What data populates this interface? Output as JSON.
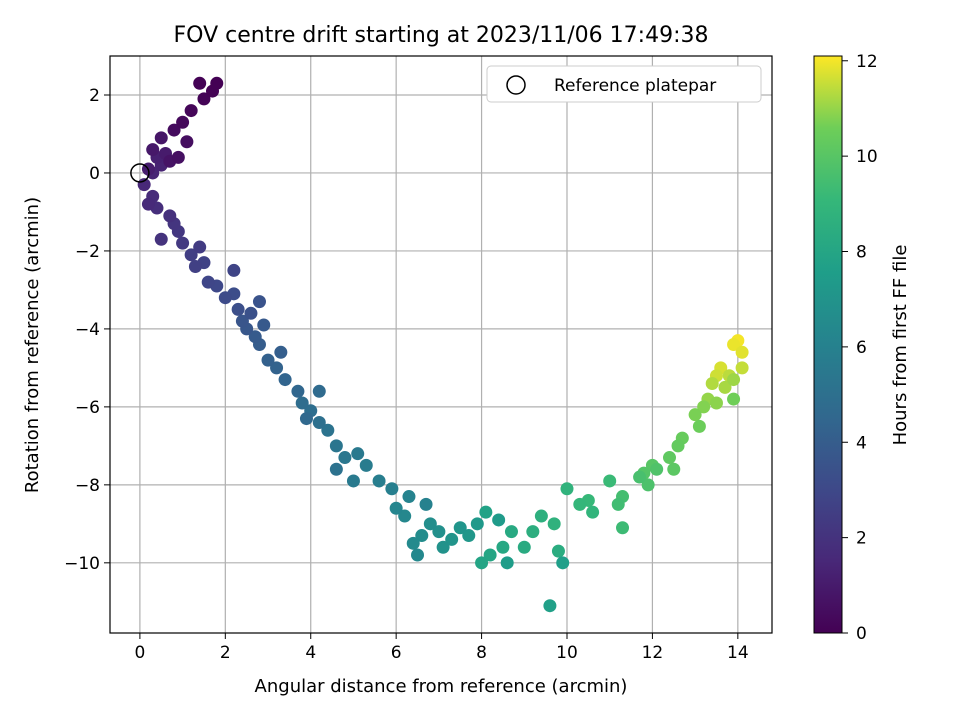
{
  "chart_data": {
    "type": "scatter",
    "title": "FOV centre drift starting at 2023/11/06 17:49:38",
    "xlabel": "Angular distance from reference (arcmin)",
    "ylabel": "Rotation from reference (arcmin)",
    "xlim": [
      -0.7,
      14.8
    ],
    "ylim": [
      -11.8,
      3.0
    ],
    "xticks": [
      0,
      2,
      4,
      6,
      8,
      10,
      12,
      14
    ],
    "yticks": [
      2,
      0,
      -2,
      -4,
      -6,
      -8,
      -10
    ],
    "xtick_labels": [
      "0",
      "2",
      "4",
      "6",
      "8",
      "10",
      "12",
      "14"
    ],
    "ytick_labels": [
      "2",
      "0",
      "−2",
      "−4",
      "−6",
      "−8",
      "−10"
    ],
    "grid": true,
    "colormap": "viridis",
    "colorbar": {
      "label": "Hours from first FF file",
      "range": [
        0,
        12.1
      ],
      "ticks": [
        0,
        2,
        4,
        6,
        8,
        10,
        12
      ],
      "tick_labels": [
        "0",
        "2",
        "4",
        "6",
        "8",
        "10",
        "12"
      ]
    },
    "legend": {
      "placement": "top-right",
      "entries": [
        {
          "label": "Reference platepar",
          "marker": "open-circle"
        }
      ]
    },
    "reference_point": {
      "x": 0,
      "y": 0
    },
    "series": [
      {
        "color_by": "hours",
        "points": [
          [
            14.0,
            -4.3,
            12.0
          ],
          [
            13.9,
            -4.4,
            11.9
          ],
          [
            14.1,
            -4.6,
            11.8
          ],
          [
            13.6,
            -5.0,
            11.7
          ],
          [
            13.5,
            -5.2,
            11.6
          ],
          [
            14.1,
            -5.0,
            11.5
          ],
          [
            13.8,
            -5.2,
            11.4
          ],
          [
            13.4,
            -5.4,
            11.3
          ],
          [
            13.7,
            -5.5,
            11.2
          ],
          [
            13.9,
            -5.3,
            11.1
          ],
          [
            13.3,
            -5.8,
            11.0
          ],
          [
            13.5,
            -5.9,
            10.9
          ],
          [
            13.2,
            -6.0,
            10.8
          ],
          [
            13.0,
            -6.2,
            10.7
          ],
          [
            13.9,
            -5.8,
            10.6
          ],
          [
            13.1,
            -6.5,
            10.5
          ],
          [
            12.7,
            -6.8,
            10.4
          ],
          [
            12.6,
            -7.0,
            10.3
          ],
          [
            12.4,
            -7.3,
            10.2
          ],
          [
            12.5,
            -7.6,
            10.1
          ],
          [
            12.0,
            -7.5,
            10.0
          ],
          [
            11.8,
            -7.7,
            9.9
          ],
          [
            12.1,
            -7.6,
            9.8
          ],
          [
            11.9,
            -8.0,
            9.7
          ],
          [
            11.7,
            -7.8,
            9.6
          ],
          [
            11.3,
            -8.3,
            9.5
          ],
          [
            11.2,
            -8.5,
            9.4
          ],
          [
            11.3,
            -9.1,
            9.3
          ],
          [
            11.0,
            -7.9,
            9.2
          ],
          [
            10.5,
            -8.4,
            9.1
          ],
          [
            10.3,
            -8.5,
            9.0
          ],
          [
            10.6,
            -8.7,
            8.9
          ],
          [
            10.0,
            -8.1,
            8.8
          ],
          [
            9.7,
            -9.0,
            8.7
          ],
          [
            9.4,
            -8.8,
            8.6
          ],
          [
            9.2,
            -9.2,
            8.5
          ],
          [
            9.8,
            -9.7,
            8.4
          ],
          [
            9.0,
            -9.6,
            8.3
          ],
          [
            8.7,
            -9.2,
            8.2
          ],
          [
            8.5,
            -9.6,
            8.1
          ],
          [
            8.2,
            -9.8,
            8.0
          ],
          [
            8.0,
            -10.0,
            7.9
          ],
          [
            8.1,
            -8.7,
            7.8
          ],
          [
            9.6,
            -11.1,
            7.7
          ],
          [
            9.9,
            -10.0,
            7.6
          ],
          [
            8.6,
            -10.0,
            7.5
          ],
          [
            8.4,
            -8.9,
            7.4
          ],
          [
            7.9,
            -9.0,
            7.3
          ],
          [
            7.7,
            -9.3,
            7.2
          ],
          [
            7.5,
            -9.1,
            7.1
          ],
          [
            7.3,
            -9.4,
            7.0
          ],
          [
            7.1,
            -9.6,
            6.9
          ],
          [
            7.0,
            -9.2,
            6.8
          ],
          [
            6.8,
            -9.0,
            6.7
          ],
          [
            6.6,
            -9.3,
            6.6
          ],
          [
            6.4,
            -9.5,
            6.5
          ],
          [
            6.5,
            -9.8,
            6.4
          ],
          [
            6.2,
            -8.8,
            6.3
          ],
          [
            6.0,
            -8.6,
            6.2
          ],
          [
            6.3,
            -8.3,
            6.1
          ],
          [
            6.7,
            -8.5,
            6.0
          ],
          [
            5.9,
            -8.1,
            5.9
          ],
          [
            5.6,
            -7.9,
            5.8
          ],
          [
            5.3,
            -7.5,
            5.7
          ],
          [
            5.0,
            -7.9,
            5.6
          ],
          [
            5.1,
            -7.2,
            5.5
          ],
          [
            4.8,
            -7.3,
            5.4
          ],
          [
            4.6,
            -7.0,
            5.3
          ],
          [
            4.4,
            -6.6,
            5.2
          ],
          [
            4.6,
            -7.6,
            5.1
          ],
          [
            4.2,
            -6.4,
            5.0
          ],
          [
            4.0,
            -6.1,
            4.9
          ],
          [
            3.8,
            -5.9,
            4.8
          ],
          [
            4.2,
            -5.6,
            4.7
          ],
          [
            3.9,
            -6.3,
            4.6
          ],
          [
            3.7,
            -5.6,
            4.5
          ],
          [
            3.4,
            -5.3,
            4.4
          ],
          [
            3.2,
            -5.0,
            4.3
          ],
          [
            3.0,
            -4.8,
            4.2
          ],
          [
            3.3,
            -4.6,
            4.1
          ],
          [
            2.8,
            -4.4,
            4.0
          ],
          [
            2.7,
            -4.2,
            3.9
          ],
          [
            2.9,
            -3.9,
            3.8
          ],
          [
            2.5,
            -4.0,
            3.7
          ],
          [
            2.4,
            -3.8,
            3.6
          ],
          [
            2.8,
            -3.3,
            3.5
          ],
          [
            2.6,
            -3.6,
            3.4
          ],
          [
            2.3,
            -3.5,
            3.3
          ],
          [
            2.2,
            -3.1,
            3.2
          ],
          [
            2.0,
            -3.2,
            3.1
          ],
          [
            1.8,
            -2.9,
            3.0
          ],
          [
            1.6,
            -2.8,
            2.9
          ],
          [
            2.2,
            -2.5,
            2.8
          ],
          [
            1.5,
            -2.3,
            2.7
          ],
          [
            1.3,
            -2.4,
            2.6
          ],
          [
            1.2,
            -2.1,
            2.5
          ],
          [
            1.4,
            -1.9,
            2.4
          ],
          [
            1.0,
            -1.8,
            2.3
          ],
          [
            0.9,
            -1.5,
            2.2
          ],
          [
            0.8,
            -1.3,
            2.1
          ],
          [
            0.5,
            -1.7,
            2.0
          ],
          [
            0.7,
            -1.1,
            1.9
          ],
          [
            0.4,
            -0.9,
            1.8
          ],
          [
            0.3,
            -0.6,
            1.7
          ],
          [
            0.2,
            -0.8,
            1.6
          ],
          [
            0.1,
            -0.3,
            1.5
          ],
          [
            0.3,
            0.0,
            1.4
          ],
          [
            0.5,
            0.2,
            1.3
          ],
          [
            0.4,
            0.4,
            1.2
          ],
          [
            0.2,
            0.1,
            1.1
          ],
          [
            0.6,
            0.5,
            1.0
          ],
          [
            0.3,
            0.6,
            0.9
          ],
          [
            0.5,
            0.9,
            0.8
          ],
          [
            0.7,
            0.3,
            0.7
          ],
          [
            0.9,
            0.4,
            0.6
          ],
          [
            1.1,
            0.8,
            0.5
          ],
          [
            0.8,
            1.1,
            0.4
          ],
          [
            1.0,
            1.3,
            0.3
          ],
          [
            1.2,
            1.6,
            0.2
          ],
          [
            1.5,
            1.9,
            0.1
          ],
          [
            1.4,
            2.3,
            0.05
          ],
          [
            1.7,
            2.1,
            0.02
          ],
          [
            1.8,
            2.3,
            0.0
          ]
        ]
      }
    ]
  }
}
